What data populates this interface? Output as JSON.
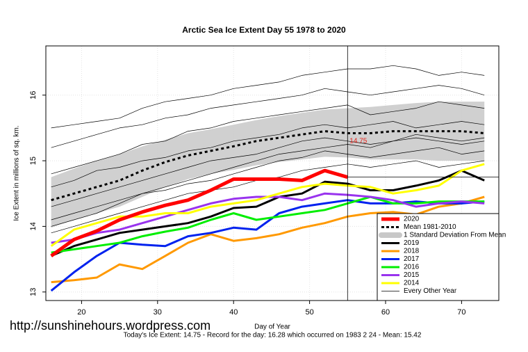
{
  "chart_data": {
    "type": "line",
    "title": "Arctic Sea Ice Extent Day 55 1978 to 2020",
    "x_label": "Day of Year",
    "y_label": "Ice Extent in millions of sq. km.",
    "footer": "Today's Ice Extent: 14.75  - Record for the day: 16.28 which occurred on 1983 2 24  - Mean: 15.42",
    "watermark": "http://sunshinehours.wordpress.com",
    "annotation": {
      "x": 55,
      "y": 14.75,
      "color": "#e8231b"
    },
    "xlim": [
      15.3,
      74.9
    ],
    "ylim": [
      12.87,
      16.75
    ],
    "xticks": [
      20,
      30,
      40,
      50,
      60,
      70
    ],
    "yticks": [
      13,
      14,
      15,
      16
    ],
    "grid": true,
    "legend": "bottom-right",
    "x": [
      16,
      19,
      22,
      25,
      28,
      31,
      34,
      37,
      40,
      43,
      46,
      49,
      52,
      55,
      58,
      61,
      64,
      67,
      70,
      73
    ],
    "series": [
      {
        "name": "2020",
        "color": "#ff0000",
        "style": "thick",
        "values": [
          13.55,
          13.8,
          13.93,
          14.1,
          14.22,
          14.32,
          14.4,
          14.55,
          14.72,
          14.72,
          14.72,
          14.7,
          14.85,
          14.75,
          null,
          null,
          null,
          null,
          null,
          null
        ]
      },
      {
        "name": "Mean 1981-2010",
        "color": "#000000",
        "style": "dashed",
        "values": [
          14.4,
          14.5,
          14.6,
          14.7,
          14.85,
          14.98,
          15.08,
          15.15,
          15.22,
          15.3,
          15.35,
          15.4,
          15.45,
          15.42,
          15.42,
          15.45,
          15.45,
          15.45,
          15.45,
          15.42
        ]
      },
      {
        "name": "1 Standard Deviation From Mean",
        "color": "#c8c8c8",
        "style": "band",
        "upper": [
          14.75,
          14.88,
          15.0,
          15.1,
          15.22,
          15.32,
          15.42,
          15.48,
          15.55,
          15.62,
          15.68,
          15.73,
          15.78,
          15.8,
          15.82,
          15.85,
          15.88,
          15.9,
          15.9,
          15.9
        ],
        "lower": [
          13.98,
          14.1,
          14.2,
          14.3,
          14.45,
          14.6,
          14.72,
          14.8,
          14.86,
          14.93,
          14.98,
          15.02,
          15.06,
          15.05,
          15.02,
          15.02,
          15.02,
          15.0,
          15.0,
          15.0
        ]
      },
      {
        "name": "2019",
        "color": "#000000",
        "style": "medium",
        "values": [
          13.55,
          13.7,
          13.8,
          13.9,
          13.95,
          14.0,
          14.05,
          14.15,
          14.28,
          14.3,
          14.45,
          14.5,
          14.68,
          14.65,
          14.55,
          14.55,
          14.62,
          14.7,
          14.85,
          14.7
        ]
      },
      {
        "name": "2018",
        "color": "#ff9900",
        "style": "medium",
        "values": [
          13.15,
          13.18,
          13.22,
          13.42,
          13.35,
          13.55,
          13.75,
          13.88,
          13.78,
          13.82,
          13.88,
          13.98,
          14.05,
          14.15,
          14.2,
          14.22,
          14.18,
          14.3,
          14.35,
          14.45
        ]
      },
      {
        "name": "2017",
        "color": "#0022ee",
        "style": "medium",
        "values": [
          13.02,
          13.3,
          13.55,
          13.75,
          13.72,
          13.7,
          13.85,
          13.9,
          13.98,
          13.95,
          14.2,
          14.3,
          14.35,
          14.4,
          14.35,
          14.35,
          14.38,
          14.35,
          14.35,
          14.38
        ]
      },
      {
        "name": "2016",
        "color": "#00ee00",
        "style": "medium",
        "values": [
          13.6,
          13.65,
          13.7,
          13.75,
          13.85,
          13.92,
          13.98,
          14.1,
          14.2,
          14.1,
          14.15,
          14.2,
          14.25,
          14.35,
          14.45,
          14.35,
          14.35,
          14.38,
          14.38,
          14.38
        ]
      },
      {
        "name": "2015",
        "color": "#9933ee",
        "style": "medium",
        "values": [
          13.75,
          13.8,
          13.9,
          13.95,
          14.05,
          14.15,
          14.25,
          14.35,
          14.42,
          14.45,
          14.45,
          14.4,
          14.5,
          14.48,
          14.45,
          14.4,
          14.3,
          14.35,
          14.38,
          14.35
        ]
      },
      {
        "name": "2014",
        "color": "#ffff00",
        "style": "medium",
        "values": [
          13.7,
          13.95,
          14.05,
          14.15,
          14.15,
          14.2,
          14.2,
          14.3,
          14.35,
          14.4,
          14.5,
          14.6,
          14.65,
          14.62,
          14.6,
          14.5,
          14.55,
          14.62,
          14.85,
          14.95
        ]
      },
      {
        "name": "Every Other Year",
        "color": "#000000",
        "style": "thin",
        "lines": [
          [
            15.5,
            15.55,
            15.6,
            15.65,
            15.8,
            15.9,
            15.95,
            16.0,
            16.1,
            16.15,
            16.2,
            16.3,
            16.35,
            16.4,
            16.4,
            16.45,
            16.4,
            16.3,
            16.35,
            16.3
          ],
          [
            15.2,
            15.3,
            15.4,
            15.5,
            15.55,
            15.65,
            15.7,
            15.8,
            15.85,
            15.9,
            15.95,
            16.0,
            16.1,
            16.05,
            16.0,
            16.05,
            16.1,
            16.15,
            16.1,
            16.0
          ],
          [
            14.8,
            14.9,
            15.0,
            15.1,
            15.25,
            15.3,
            15.45,
            15.5,
            15.6,
            15.65,
            15.7,
            15.75,
            15.8,
            15.85,
            15.7,
            15.75,
            15.8,
            15.9,
            15.85,
            15.8
          ],
          [
            14.6,
            14.7,
            14.85,
            14.9,
            15.0,
            15.05,
            15.15,
            15.2,
            15.3,
            15.35,
            15.4,
            15.5,
            15.55,
            15.5,
            15.55,
            15.6,
            15.5,
            15.55,
            15.6,
            15.55
          ],
          [
            14.3,
            14.4,
            14.5,
            14.6,
            14.7,
            14.8,
            14.9,
            15.0,
            15.05,
            15.1,
            15.2,
            15.3,
            15.35,
            15.3,
            15.25,
            15.3,
            15.35,
            15.3,
            15.25,
            15.3
          ],
          [
            14.1,
            14.2,
            14.3,
            14.4,
            14.5,
            14.55,
            14.65,
            14.7,
            14.8,
            14.9,
            15.0,
            15.05,
            15.15,
            15.1,
            15.05,
            15.1,
            15.15,
            15.2,
            15.1,
            15.15
          ],
          [
            13.9,
            14.0,
            14.1,
            14.2,
            14.3,
            14.4,
            14.5,
            14.55,
            14.6,
            14.7,
            14.75,
            14.85,
            14.9,
            14.95,
            14.9,
            14.95,
            15.0,
            14.9,
            14.95,
            15.0
          ],
          [
            14.0,
            14.1,
            14.2,
            14.35,
            14.5,
            14.6,
            14.7,
            14.8,
            14.9,
            15.0,
            15.1,
            15.15,
            15.2,
            15.25,
            15.2,
            15.3,
            15.4,
            15.35,
            15.3,
            15.35
          ]
        ]
      }
    ]
  }
}
